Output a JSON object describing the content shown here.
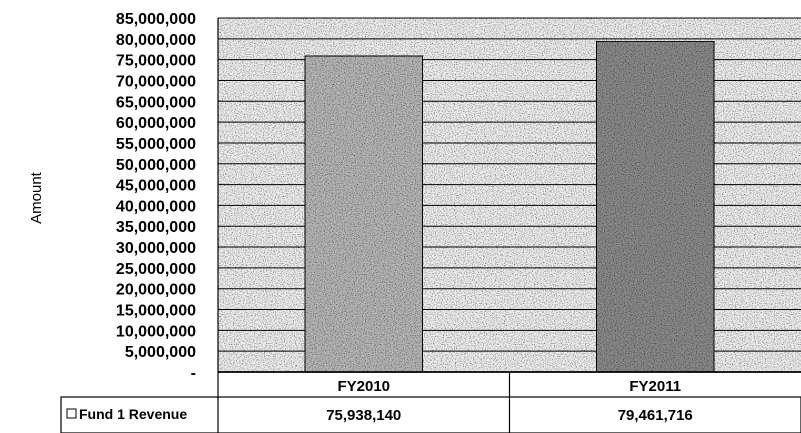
{
  "chart_data": {
    "type": "bar",
    "title": "",
    "xlabel": "",
    "ylabel": "Amount",
    "ylim": [
      0,
      85000000
    ],
    "ytick_step": 5000000,
    "ytick_labels": [
      "-",
      "5,000,000",
      "10,000,000",
      "15,000,000",
      "20,000,000",
      "25,000,000",
      "30,000,000",
      "35,000,000",
      "40,000,000",
      "45,000,000",
      "50,000,000",
      "55,000,000",
      "60,000,000",
      "65,000,000",
      "70,000,000",
      "75,000,000",
      "80,000,000",
      "85,000,000"
    ],
    "categories": [
      "FY2010",
      "FY2011"
    ],
    "series": [
      {
        "name": "Fund 1 Revenue",
        "values": [
          75938140,
          79461716
        ],
        "value_labels": [
          "75,938,140",
          "79,461,716"
        ]
      }
    ],
    "grid": true,
    "legend": "data-table-left",
    "colors": {
      "bar_light": "#b9b9b9",
      "bar_dark": "#8c8c8c",
      "plot_bg": "#f2f2f2",
      "gridline": "#000000"
    }
  }
}
